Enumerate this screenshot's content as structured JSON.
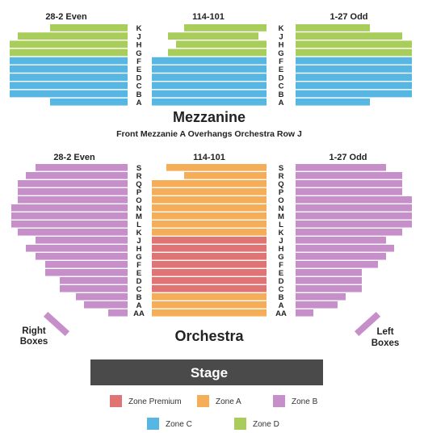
{
  "colors": {
    "zone_premium": "#e07474",
    "zone_a": "#f6ad57",
    "zone_b": "#c68fca",
    "zone_c": "#58b6e2",
    "zone_d": "#a9cd5b",
    "stage": "#4a4a4a"
  },
  "mezzanine": {
    "title": "Mezzanine",
    "note": "Front Mezzanie A Overhangs Orchestra Row J",
    "left_header": "28-2 Even",
    "center_header": "114-101",
    "right_header": "1-27 Odd",
    "rows": [
      "K",
      "J",
      "H",
      "G",
      "F",
      "E",
      "D",
      "C",
      "B",
      "A"
    ]
  },
  "orchestra": {
    "title": "Orchestra",
    "left_header": "28-2 Even",
    "center_header": "114-101",
    "right_header": "1-27 Odd",
    "rows": [
      "S",
      "R",
      "Q",
      "P",
      "O",
      "N",
      "M",
      "L",
      "K",
      "J",
      "H",
      "G",
      "F",
      "E",
      "D",
      "C",
      "B",
      "A",
      "AA"
    ]
  },
  "boxes": {
    "right_line1": "Right",
    "right_line2": "Boxes",
    "left_line1": "Left",
    "left_line2": "Boxes"
  },
  "stage": {
    "label": "Stage"
  },
  "legend": [
    {
      "label": "Zone Premium",
      "color": "#e07474"
    },
    {
      "label": "Zone A",
      "color": "#f6ad57"
    },
    {
      "label": "Zone B",
      "color": "#c68fca"
    },
    {
      "label": "Zone C",
      "color": "#58b6e2"
    },
    {
      "label": "Zone D",
      "color": "#a9cd5b"
    }
  ]
}
